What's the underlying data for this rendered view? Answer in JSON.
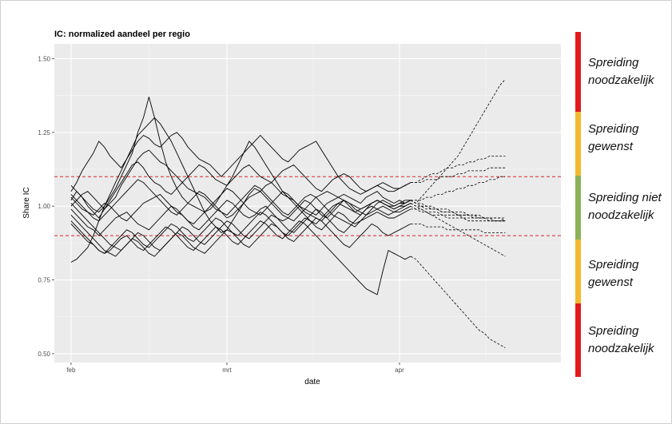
{
  "chart_data": {
    "type": "line",
    "title": "IC: normalized aandeel per regio",
    "xlabel": "date",
    "ylabel": "Share IC",
    "x_ticks": [
      {
        "label": "feb",
        "date": "2021-02-01"
      },
      {
        "label": "mrt",
        "date": "2021-03-01"
      },
      {
        "label": "apr",
        "date": "2021-04-01"
      }
    ],
    "y_ticks": [
      "0.50",
      "0.75",
      "1.00",
      "1.25",
      "1.50"
    ],
    "ylim": [
      0.47,
      1.55
    ],
    "xlim": [
      "2021-01-29",
      "2021-04-30"
    ],
    "grid": true,
    "thresholds": [
      0.9,
      1.1
    ],
    "threshold_color": "#d62728",
    "panel_color": "#ebebeb",
    "start_date": "2021-02-01",
    "observed_end_date": "2021-04-03",
    "forecast_end_date": "2021-04-20",
    "series": [
      {
        "values": [
          1.02,
          1.05,
          1.03,
          1.0,
          0.98,
          0.96,
          0.99,
          1.01,
          1.03,
          1.07,
          1.1,
          1.13,
          1.16,
          1.18,
          1.19,
          1.17,
          1.15,
          1.14,
          1.12,
          1.1,
          1.08,
          1.06,
          1.05,
          1.04,
          1.03,
          1.01,
          0.99,
          0.98,
          0.96,
          0.97,
          0.99,
          1.01,
          1.03,
          1.04,
          1.05,
          1.07,
          1.08,
          1.06,
          1.04,
          1.03,
          1.02,
          1.0,
          0.99,
          0.98,
          0.97,
          0.99,
          1.01,
          1.02,
          1.03,
          1.04,
          1.03,
          1.02,
          1.01,
          1.03,
          1.04,
          1.05,
          1.03,
          1.02,
          1.01,
          1.02,
          1.01,
          1.02
        ],
        "forecast": [
          1.01,
          1.03,
          1.05,
          1.07,
          1.09,
          1.11,
          1.13,
          1.15,
          1.17,
          1.2,
          1.23,
          1.26,
          1.29,
          1.32,
          1.35,
          1.38,
          1.41,
          1.43
        ]
      },
      {
        "values": [
          1.05,
          1.08,
          1.12,
          1.15,
          1.18,
          1.22,
          1.2,
          1.17,
          1.15,
          1.13,
          1.16,
          1.19,
          1.22,
          1.24,
          1.23,
          1.21,
          1.2,
          1.22,
          1.24,
          1.25,
          1.23,
          1.2,
          1.18,
          1.16,
          1.15,
          1.14,
          1.12,
          1.1,
          1.12,
          1.14,
          1.16,
          1.18,
          1.2,
          1.22,
          1.24,
          1.22,
          1.2,
          1.18,
          1.16,
          1.15,
          1.17,
          1.19,
          1.2,
          1.21,
          1.22,
          1.19,
          1.16,
          1.13,
          1.1,
          1.08,
          1.06,
          1.05,
          1.04,
          1.05,
          1.06,
          1.07,
          1.06,
          1.05,
          1.05,
          1.06,
          1.07,
          1.08
        ],
        "forecast": [
          1.08,
          1.09,
          1.1,
          1.11,
          1.11,
          1.12,
          1.13,
          1.13,
          1.14,
          1.14,
          1.15,
          1.15,
          1.16,
          1.16,
          1.17,
          1.17,
          1.17,
          1.17
        ]
      },
      {
        "values": [
          1.0,
          1.02,
          1.04,
          1.05,
          1.03,
          1.01,
          0.99,
          1.02,
          1.05,
          1.08,
          1.11,
          1.14,
          1.15,
          1.13,
          1.1,
          1.08,
          1.07,
          1.05,
          1.04,
          1.06,
          1.08,
          1.1,
          1.12,
          1.14,
          1.13,
          1.11,
          1.09,
          1.08,
          1.07,
          1.09,
          1.11,
          1.13,
          1.14,
          1.12,
          1.1,
          1.09,
          1.08,
          1.1,
          1.12,
          1.13,
          1.14,
          1.12,
          1.1,
          1.08,
          1.06,
          1.05,
          1.07,
          1.09,
          1.1,
          1.11,
          1.1,
          1.08,
          1.06,
          1.05,
          1.06,
          1.07,
          1.08,
          1.07,
          1.06,
          1.06,
          1.07,
          1.08
        ],
        "forecast": [
          1.08,
          1.08,
          1.09,
          1.09,
          1.09,
          1.1,
          1.1,
          1.1,
          1.11,
          1.11,
          1.12,
          1.12,
          1.12,
          1.12,
          1.13,
          1.13,
          1.13,
          1.13
        ]
      },
      {
        "values": [
          0.81,
          0.82,
          0.84,
          0.86,
          0.9,
          0.95,
          1.0,
          1.04,
          1.08,
          1.12,
          1.16,
          1.2,
          1.24,
          1.26,
          1.28,
          1.3,
          1.28,
          1.25,
          1.22,
          1.18,
          1.14,
          1.1,
          1.06,
          1.02,
          0.98,
          0.95,
          0.93,
          0.91,
          0.92,
          0.95,
          0.98,
          1.01,
          1.04,
          1.06,
          1.05,
          1.03,
          1.01,
          0.99,
          0.97,
          0.96,
          0.95,
          0.97,
          0.99,
          1.01,
          1.03,
          1.04,
          1.05,
          1.04,
          1.03,
          1.02,
          1.01,
          1.0,
          0.99,
          1.0,
          1.01,
          1.02,
          1.01,
          1.0,
          1.0,
          1.01,
          1.01,
          1.02
        ],
        "forecast": [
          1.02,
          1.02,
          1.03,
          1.03,
          1.04,
          1.04,
          1.05,
          1.05,
          1.06,
          1.06,
          1.07,
          1.07,
          1.08,
          1.08,
          1.09,
          1.09,
          1.1,
          1.1
        ]
      },
      {
        "values": [
          1.07,
          1.05,
          1.03,
          1.01,
          0.99,
          0.98,
          1.0,
          1.03,
          1.06,
          1.1,
          1.14,
          1.18,
          1.25,
          1.3,
          1.37,
          1.3,
          1.22,
          1.15,
          1.1,
          1.06,
          1.03,
          1.01,
          1.0,
          0.99,
          0.98,
          0.99,
          1.01,
          1.04,
          1.07,
          1.1,
          1.14,
          1.18,
          1.22,
          1.2,
          1.17,
          1.14,
          1.11,
          1.08,
          1.05,
          1.03,
          1.01,
          0.99,
          0.97,
          0.95,
          0.94,
          0.96,
          0.98,
          1.0,
          1.01,
          1.02,
          1.0,
          0.98,
          0.97,
          0.99,
          1.01,
          1.02,
          1.01,
          1.0,
          0.99,
          1.0,
          1.01,
          1.02
        ],
        "forecast": [
          1.01,
          1.01,
          1.0,
          1.0,
          0.99,
          0.99,
          0.99,
          0.98,
          0.98,
          0.98,
          0.97,
          0.97,
          0.97,
          0.96,
          0.96,
          0.96,
          0.96,
          0.95
        ]
      },
      {
        "values": [
          1.03,
          1.01,
          0.99,
          0.98,
          0.97,
          0.99,
          1.01,
          1.0,
          0.98,
          0.96,
          0.95,
          0.97,
          0.99,
          1.01,
          1.02,
          1.03,
          1.04,
          1.02,
          1.0,
          0.98,
          0.97,
          0.95,
          0.94,
          0.96,
          0.98,
          1.0,
          1.02,
          1.04,
          1.06,
          1.05,
          1.03,
          1.01,
          0.99,
          0.98,
          0.97,
          0.99,
          1.01,
          1.03,
          1.05,
          1.04,
          1.02,
          1.0,
          0.98,
          0.97,
          0.96,
          0.95,
          0.97,
          0.99,
          1.01,
          1.0,
          0.99,
          0.98,
          0.99,
          1.0,
          1.01,
          1.02,
          1.01,
          1.0,
          0.99,
          1.0,
          1.0,
          1.01
        ],
        "forecast": [
          1.0,
          1.0,
          0.99,
          0.99,
          0.99,
          0.98,
          0.98,
          0.98,
          0.97,
          0.97,
          0.97,
          0.96,
          0.96,
          0.96,
          0.96,
          0.95,
          0.95,
          0.95
        ]
      },
      {
        "values": [
          0.99,
          0.97,
          0.95,
          0.93,
          0.92,
          0.9,
          0.92,
          0.94,
          0.96,
          0.97,
          0.98,
          0.96,
          0.94,
          0.93,
          0.92,
          0.94,
          0.96,
          0.98,
          1.0,
          0.99,
          0.97,
          0.95,
          0.93,
          0.92,
          0.94,
          0.96,
          0.98,
          1.0,
          1.02,
          1.01,
          0.99,
          0.97,
          0.96,
          0.97,
          0.99,
          1.0,
          0.98,
          0.96,
          0.95,
          0.96,
          0.98,
          1.0,
          1.02,
          1.01,
          0.99,
          0.97,
          0.96,
          0.98,
          1.0,
          1.02,
          1.01,
          0.99,
          0.98,
          0.97,
          0.98,
          0.99,
          1.0,
          0.99,
          0.98,
          0.98,
          0.99,
          1.0
        ],
        "forecast": [
          0.99,
          0.99,
          0.98,
          0.98,
          0.98,
          0.97,
          0.97,
          0.97,
          0.97,
          0.96,
          0.96,
          0.96,
          0.96,
          0.96,
          0.95,
          0.95,
          0.95,
          0.95
        ]
      },
      {
        "values": [
          0.94,
          0.92,
          0.9,
          0.88,
          0.87,
          0.85,
          0.84,
          0.86,
          0.88,
          0.9,
          0.92,
          0.91,
          0.89,
          0.87,
          0.86,
          0.88,
          0.9,
          0.92,
          0.94,
          0.93,
          0.91,
          0.89,
          0.88,
          0.9,
          0.92,
          0.94,
          0.96,
          0.95,
          0.93,
          0.91,
          0.9,
          0.92,
          0.94,
          0.96,
          0.98,
          0.97,
          0.95,
          0.93,
          0.91,
          0.9,
          0.92,
          0.94,
          0.96,
          0.95,
          0.93,
          0.92,
          0.94,
          0.96,
          0.98,
          0.97,
          0.95,
          0.94,
          0.95,
          0.96,
          0.97,
          0.98,
          0.97,
          0.96,
          0.96,
          0.97,
          0.98,
          0.99
        ],
        "forecast": [
          0.99,
          0.98,
          0.98,
          0.97,
          0.97,
          0.97,
          0.96,
          0.96,
          0.96,
          0.96,
          0.95,
          0.95,
          0.95,
          0.95,
          0.95,
          0.95,
          0.95,
          0.95
        ]
      },
      {
        "values": [
          1.01,
          0.99,
          0.97,
          0.95,
          0.93,
          0.91,
          0.89,
          0.87,
          0.86,
          0.85,
          0.87,
          0.89,
          0.91,
          0.9,
          0.88,
          0.86,
          0.85,
          0.87,
          0.89,
          0.91,
          0.93,
          0.92,
          0.9,
          0.88,
          0.87,
          0.89,
          0.91,
          0.93,
          0.95,
          0.94,
          0.92,
          0.9,
          0.89,
          0.91,
          0.93,
          0.95,
          0.97,
          0.96,
          0.94,
          0.92,
          0.91,
          0.93,
          0.95,
          0.97,
          0.99,
          0.98,
          0.96,
          0.94,
          0.92,
          0.91,
          0.93,
          0.95,
          0.97,
          0.99,
          1.0,
          0.99,
          0.98,
          0.97,
          0.98,
          0.99,
          1.0,
          1.01
        ],
        "forecast": [
          1.0,
          0.99,
          0.98,
          0.97,
          0.96,
          0.95,
          0.94,
          0.93,
          0.92,
          0.91,
          0.9,
          0.89,
          0.88,
          0.87,
          0.86,
          0.85,
          0.84,
          0.83
        ]
      },
      {
        "values": [
          0.97,
          0.95,
          0.93,
          0.91,
          0.89,
          0.87,
          0.85,
          0.84,
          0.83,
          0.85,
          0.87,
          0.89,
          0.88,
          0.86,
          0.84,
          0.83,
          0.85,
          0.87,
          0.89,
          0.91,
          0.9,
          0.88,
          0.86,
          0.85,
          0.84,
          0.86,
          0.88,
          0.9,
          0.92,
          0.91,
          0.89,
          0.87,
          0.86,
          0.88,
          0.9,
          0.92,
          0.94,
          0.93,
          0.91,
          0.89,
          0.88,
          0.9,
          0.92,
          0.94,
          0.96,
          0.95,
          0.93,
          0.91,
          0.89,
          0.87,
          0.86,
          0.88,
          0.9,
          0.92,
          0.94,
          0.93,
          0.91,
          0.9,
          0.91,
          0.92,
          0.93,
          0.94
        ],
        "forecast": [
          0.94,
          0.94,
          0.93,
          0.93,
          0.93,
          0.93,
          0.92,
          0.92,
          0.92,
          0.92,
          0.92,
          0.92,
          0.92,
          0.91,
          0.91,
          0.91,
          0.91,
          0.91
        ]
      },
      {
        "values": [
          0.95,
          0.93,
          0.91,
          0.89,
          0.87,
          0.85,
          0.84,
          0.85,
          0.87,
          0.89,
          0.9,
          0.88,
          0.86,
          0.85,
          0.87,
          0.89,
          0.91,
          0.93,
          0.92,
          0.9,
          0.88,
          0.86,
          0.85,
          0.87,
          0.89,
          0.91,
          0.93,
          0.92,
          0.9,
          0.88,
          0.87,
          0.89,
          0.91,
          0.93,
          0.95,
          0.94,
          0.92,
          0.9,
          0.89,
          0.91,
          0.93,
          0.95,
          0.94,
          0.92,
          0.9,
          0.88,
          0.86,
          0.84,
          0.82,
          0.8,
          0.78,
          0.76,
          0.74,
          0.72,
          0.71,
          0.7,
          0.78,
          0.85,
          0.84,
          0.83,
          0.82,
          0.83
        ],
        "forecast": [
          0.82,
          0.8,
          0.78,
          0.76,
          0.74,
          0.72,
          0.7,
          0.68,
          0.66,
          0.64,
          0.62,
          0.6,
          0.58,
          0.57,
          0.55,
          0.54,
          0.53,
          0.52
        ]
      },
      {
        "values": [
          1.04,
          1.02,
          1.0,
          0.98,
          0.96,
          0.95,
          0.97,
          0.99,
          1.01,
          1.03,
          1.05,
          1.07,
          1.09,
          1.08,
          1.06,
          1.04,
          1.02,
          1.0,
          0.98,
          0.97,
          0.99,
          1.01,
          1.03,
          1.05,
          1.04,
          1.02,
          1.0,
          0.98,
          0.97,
          0.99,
          1.01,
          1.03,
          1.05,
          1.07,
          1.06,
          1.04,
          1.02,
          1.0,
          0.98,
          0.97,
          0.99,
          1.01,
          1.03,
          1.04,
          1.03,
          1.01,
          0.99,
          0.97,
          0.96,
          0.95,
          0.94,
          0.93,
          0.95,
          0.97,
          0.99,
          1.01,
          1.02,
          1.01,
          1.0,
          1.01,
          1.02,
          1.02
        ],
        "forecast": [
          1.01,
          1.0,
          1.0,
          0.99,
          0.99,
          0.98,
          0.98,
          0.98,
          0.97,
          0.97,
          0.97,
          0.97,
          0.96,
          0.96,
          0.96,
          0.96,
          0.96,
          0.96
        ]
      }
    ]
  },
  "zones": [
    {
      "label": "Spreiding noodzakelijk",
      "color": "#e01b1b",
      "from": 1.3,
      "to": 1.55
    },
    {
      "label": "Spreiding gewenst",
      "color": "#f3b92f",
      "from": 1.1,
      "to": 1.3
    },
    {
      "label": "Spreiding niet noodzakelijk",
      "color": "#8cb257",
      "from": 0.9,
      "to": 1.1
    },
    {
      "label": "Spreiding gewenst",
      "color": "#f3b92f",
      "from": 0.7,
      "to": 0.9
    },
    {
      "label": "Spreiding noodzakelijk",
      "color": "#e01b1b",
      "from": 0.47,
      "to": 0.7
    }
  ]
}
